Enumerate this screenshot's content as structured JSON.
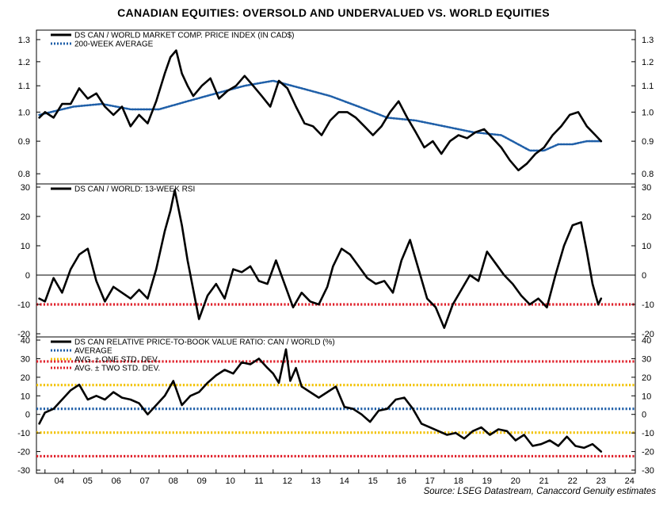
{
  "title": "CANADIAN EQUITIES: OVERSOLD AND UNDERVALUED VS. WORLD EQUITIES",
  "source": "Source: LSEG Datastream, Canaccord Genuity estimates",
  "colors": {
    "series": "#000000",
    "avg_blue": "#1f5fa8",
    "yellow": "#f2c200",
    "red": "#e0202a",
    "zero": "#000000"
  },
  "x_axis": {
    "tick_labels": [
      "04",
      "05",
      "06",
      "07",
      "08",
      "09",
      "10",
      "11",
      "12",
      "13",
      "14",
      "15",
      "16",
      "17",
      "18",
      "19",
      "20",
      "21",
      "22",
      "23",
      "24"
    ],
    "range": [
      2003.7,
      2024.7
    ]
  },
  "chart_data": [
    {
      "type": "line",
      "panel": "top",
      "ylim": [
        0.78,
        1.33
      ],
      "log_scale": true,
      "yticks": [
        "0.8",
        "0.9",
        "1.0",
        "1.1",
        "1.2",
        "1.3"
      ],
      "legend": [
        {
          "label": "DS CAN / WORLD MARKET COMP. PRICE INDEX (IN CAD$)",
          "style": "solid",
          "color": "#000000"
        },
        {
          "label": "200-WEEK AVERAGE",
          "style": "dotted",
          "color": "#1f5fa8"
        }
      ],
      "series": [
        {
          "name": "DS CAN / WORLD MARKET COMP. PRICE INDEX (IN CAD$)",
          "x": [
            2003.8,
            2004.0,
            2004.3,
            2004.6,
            2004.9,
            2005.2,
            2005.5,
            2005.8,
            2006.1,
            2006.4,
            2006.7,
            2007.0,
            2007.3,
            2007.6,
            2007.9,
            2008.2,
            2008.4,
            2008.6,
            2008.8,
            2009.0,
            2009.2,
            2009.5,
            2009.8,
            2010.1,
            2010.4,
            2010.7,
            2011.0,
            2011.3,
            2011.6,
            2011.9,
            2012.2,
            2012.5,
            2012.8,
            2013.1,
            2013.4,
            2013.7,
            2014.0,
            2014.3,
            2014.6,
            2014.9,
            2015.2,
            2015.5,
            2015.8,
            2016.1,
            2016.4,
            2016.7,
            2017.0,
            2017.3,
            2017.6,
            2017.9,
            2018.2,
            2018.5,
            2018.8,
            2019.1,
            2019.4,
            2019.7,
            2020.0,
            2020.3,
            2020.6,
            2020.9,
            2021.2,
            2021.5,
            2021.8,
            2022.1,
            2022.4,
            2022.7,
            2023.0,
            2023.3,
            2023.5
          ],
          "y": [
            0.98,
            1.0,
            0.98,
            1.03,
            1.03,
            1.09,
            1.05,
            1.07,
            1.02,
            0.99,
            1.02,
            0.95,
            0.99,
            0.96,
            1.04,
            1.15,
            1.22,
            1.25,
            1.15,
            1.1,
            1.06,
            1.1,
            1.13,
            1.05,
            1.08,
            1.1,
            1.14,
            1.1,
            1.06,
            1.02,
            1.12,
            1.09,
            1.02,
            0.96,
            0.95,
            0.92,
            0.97,
            1.0,
            1.0,
            0.98,
            0.95,
            0.92,
            0.95,
            1.0,
            1.04,
            0.98,
            0.93,
            0.88,
            0.9,
            0.86,
            0.9,
            0.92,
            0.91,
            0.93,
            0.94,
            0.91,
            0.88,
            0.84,
            0.81,
            0.83,
            0.86,
            0.88,
            0.92,
            0.95,
            0.99,
            1.0,
            0.95,
            0.92,
            0.9
          ]
        },
        {
          "name": "200-WEEK AVERAGE",
          "x": [
            2003.8,
            2005.0,
            2006.0,
            2007.0,
            2008.0,
            2009.0,
            2010.0,
            2011.0,
            2012.0,
            2013.0,
            2014.0,
            2015.0,
            2016.0,
            2017.0,
            2018.0,
            2019.0,
            2020.0,
            2021.0,
            2021.5,
            2022.0,
            2022.5,
            2023.0,
            2023.5
          ],
          "y": [
            0.99,
            1.02,
            1.03,
            1.01,
            1.01,
            1.04,
            1.07,
            1.1,
            1.12,
            1.09,
            1.06,
            1.02,
            0.98,
            0.97,
            0.95,
            0.93,
            0.92,
            0.87,
            0.87,
            0.89,
            0.89,
            0.9,
            0.9
          ]
        }
      ]
    },
    {
      "type": "line",
      "panel": "middle",
      "ylim": [
        -20,
        30
      ],
      "yticks": [
        "-20",
        "-10",
        "0",
        "10",
        "20",
        "30"
      ],
      "legend": [
        {
          "label": "DS CAN / WORLD: 13-WEEK RSI",
          "style": "solid",
          "color": "#000000"
        }
      ],
      "reference_lines": [
        {
          "y": 0,
          "style": "solid",
          "color": "#000000"
        },
        {
          "y": -10,
          "style": "dotted",
          "color": "#e0202a"
        }
      ],
      "series": [
        {
          "name": "DS CAN / WORLD: 13-WEEK RSI",
          "x": [
            2003.8,
            2004.0,
            2004.3,
            2004.6,
            2004.9,
            2005.2,
            2005.5,
            2005.8,
            2006.1,
            2006.4,
            2006.7,
            2007.0,
            2007.3,
            2007.6,
            2007.9,
            2008.2,
            2008.4,
            2008.55,
            2008.8,
            2009.0,
            2009.2,
            2009.4,
            2009.7,
            2010.0,
            2010.3,
            2010.6,
            2010.9,
            2011.2,
            2011.5,
            2011.8,
            2012.1,
            2012.4,
            2012.7,
            2013.0,
            2013.3,
            2013.6,
            2013.9,
            2014.1,
            2014.4,
            2014.7,
            2015.0,
            2015.3,
            2015.6,
            2015.9,
            2016.2,
            2016.5,
            2016.8,
            2017.1,
            2017.4,
            2017.7,
            2018.0,
            2018.3,
            2018.6,
            2018.9,
            2019.2,
            2019.5,
            2019.8,
            2020.1,
            2020.4,
            2020.7,
            2021.0,
            2021.3,
            2021.6,
            2021.9,
            2022.2,
            2022.5,
            2022.8,
            2023.0,
            2023.2,
            2023.4,
            2023.5
          ],
          "y": [
            -8,
            -9,
            -1,
            -6,
            2,
            7,
            9,
            -2,
            -9,
            -4,
            -6,
            -8,
            -5,
            -8,
            2,
            15,
            22,
            29,
            17,
            5,
            -5,
            -15,
            -7,
            -3,
            -8,
            2,
            1,
            3,
            -2,
            -3,
            5,
            -3,
            -11,
            -6,
            -9,
            -10,
            -4,
            3,
            9,
            7,
            3,
            -1,
            -3,
            -2,
            -6,
            5,
            12,
            2,
            -8,
            -11,
            -18,
            -10,
            -5,
            0,
            -2,
            8,
            4,
            0,
            -3,
            -7,
            -10,
            -8,
            -11,
            0,
            10,
            17,
            18,
            8,
            -3,
            -10,
            -8
          ]
        }
      ]
    },
    {
      "type": "line",
      "panel": "bottom",
      "ylim": [
        -30,
        40
      ],
      "yticks": [
        "-30",
        "-20",
        "-10",
        "0",
        "10",
        "20",
        "30",
        "40"
      ],
      "legend": [
        {
          "label": "DS CAN RELATIVE PRICE-TO-BOOK VALUE RATIO: CAN / WORLD (%)",
          "style": "solid",
          "color": "#000000"
        },
        {
          "label": "AVERAGE",
          "style": "dotted",
          "color": "#1f5fa8"
        },
        {
          "label": "AVG. ± ONE STD. DEV.",
          "style": "dotted",
          "color": "#f2c200"
        },
        {
          "label": "AVG. ± TWO STD. DEV.",
          "style": "dotted",
          "color": "#e0202a"
        }
      ],
      "reference_lines": [
        {
          "y": 28.5,
          "style": "dotted",
          "color": "#e0202a"
        },
        {
          "y": 15.8,
          "style": "dotted",
          "color": "#f2c200"
        },
        {
          "y": 3.0,
          "style": "dotted",
          "color": "#1f5fa8"
        },
        {
          "y": -9.8,
          "style": "dotted",
          "color": "#f2c200"
        },
        {
          "y": -22.5,
          "style": "dotted",
          "color": "#e0202a"
        }
      ],
      "series": [
        {
          "name": "DS CAN RELATIVE PRICE-TO-BOOK VALUE RATIO: CAN / WORLD (%)",
          "x": [
            2003.8,
            2004.0,
            2004.3,
            2004.6,
            2004.9,
            2005.2,
            2005.5,
            2005.8,
            2006.1,
            2006.4,
            2006.7,
            2007.0,
            2007.3,
            2007.6,
            2007.9,
            2008.2,
            2008.5,
            2008.8,
            2009.1,
            2009.4,
            2009.7,
            2010.0,
            2010.3,
            2010.6,
            2010.9,
            2011.2,
            2011.5,
            2011.8,
            2012.0,
            2012.2,
            2012.45,
            2012.6,
            2012.8,
            2013.0,
            2013.3,
            2013.6,
            2013.9,
            2014.2,
            2014.5,
            2014.8,
            2015.1,
            2015.4,
            2015.7,
            2016.0,
            2016.3,
            2016.6,
            2016.9,
            2017.2,
            2017.5,
            2017.8,
            2018.1,
            2018.4,
            2018.7,
            2019.0,
            2019.3,
            2019.6,
            2019.9,
            2020.2,
            2020.5,
            2020.8,
            2021.1,
            2021.4,
            2021.7,
            2022.0,
            2022.3,
            2022.6,
            2022.9,
            2023.2,
            2023.5
          ],
          "y": [
            -5,
            1,
            3,
            8,
            13,
            16,
            8,
            10,
            8,
            12,
            9,
            8,
            6,
            0,
            5,
            10,
            18,
            5,
            10,
            12,
            17,
            21,
            24,
            22,
            28,
            27,
            30,
            25,
            22,
            17,
            35,
            18,
            25,
            15,
            12,
            9,
            12,
            15,
            4,
            3,
            0,
            -4,
            2,
            3,
            8,
            9,
            3,
            -5,
            -7,
            -9,
            -11,
            -10,
            -13,
            -9,
            -7,
            -11,
            -8,
            -9,
            -14,
            -11,
            -17,
            -16,
            -14,
            -17,
            -12,
            -17,
            -18,
            -16,
            -20
          ]
        }
      ]
    }
  ]
}
